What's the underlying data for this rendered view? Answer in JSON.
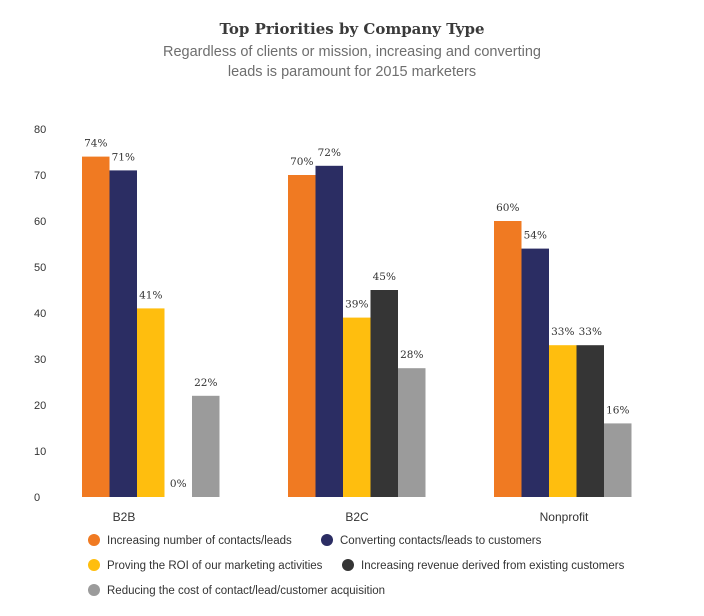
{
  "chart_data": {
    "type": "bar",
    "title": "Top Priorities by Company Type",
    "subtitle": [
      "Regardless of clients or mission, increasing and converting",
      "leads is paramount for 2015 marketers"
    ],
    "categories": [
      "B2B",
      "B2C",
      "Nonprofit"
    ],
    "ylim": [
      0,
      80
    ],
    "yticks": [
      0,
      10,
      20,
      30,
      40,
      50,
      60,
      70,
      80
    ],
    "grid": false,
    "legend_position": "bottom",
    "series": [
      {
        "name": "Increasing number of contacts/leads",
        "color": "#f07a22",
        "values": [
          74,
          70,
          60
        ],
        "labels": [
          "74%",
          "70%",
          "60%"
        ]
      },
      {
        "name": "Converting contacts/leads to customers",
        "color": "#2b2d63",
        "values": [
          71,
          72,
          54
        ],
        "labels": [
          "71%",
          "72%",
          "54%"
        ]
      },
      {
        "name": "Proving the ROI of our marketing activities",
        "color": "#ffbe0e",
        "values": [
          41,
          39,
          33
        ],
        "labels": [
          "41%",
          "39%",
          "33%"
        ]
      },
      {
        "name": "Increasing revenue derived from existing customers",
        "color": "#353535",
        "values": [
          0,
          45,
          33
        ],
        "labels": [
          "0%",
          "45%",
          "33%"
        ]
      },
      {
        "name": "Reducing the cost of contact/lead/customer acquisition",
        "color": "#9b9b9b",
        "values": [
          22,
          28,
          16
        ],
        "labels": [
          "22%",
          "28%",
          "16%"
        ]
      }
    ]
  }
}
